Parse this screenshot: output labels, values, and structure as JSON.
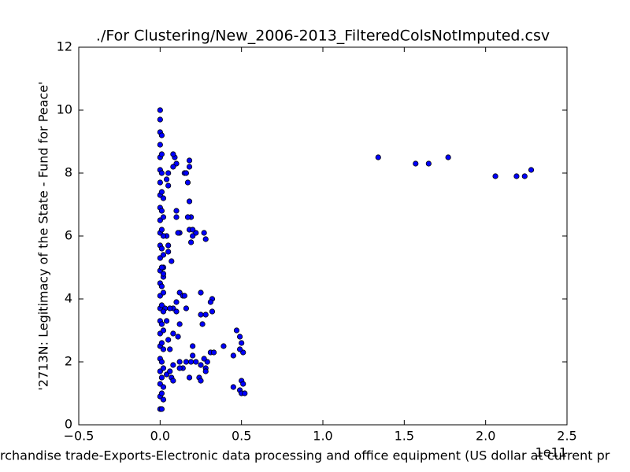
{
  "chart_data": {
    "type": "scatter",
    "title": "./For Clustering/New_2006-2013_FilteredColsNotImputed.csv",
    "x_label": "rchandise trade-Exports-Electronic data processing and office equipment (US dollar at current pr",
    "y_label": "'2713N: Legitimacy of the State - Fund for Peace'",
    "x_offset_label": "1e11",
    "color": "#0000ff",
    "edge_color": "#000000",
    "xlim": [
      -0.5,
      2.5
    ],
    "xticks": [
      {
        "value": -0.5,
        "label": "−0.5"
      },
      {
        "value": 0,
        "label": "0.0"
      },
      0.5,
      {
        "value": 1,
        "label": "1.0"
      },
      1.5,
      {
        "value": 2,
        "label": "2.0"
      },
      2.5
    ],
    "ylim": [
      0,
      12
    ],
    "yticks": [
      0,
      2,
      4,
      6,
      8,
      10,
      12
    ],
    "x": [
      1.34,
      1.57,
      1.65,
      1.77,
      2.06,
      2.19,
      2.24,
      2.28,
      0.47,
      0.49,
      0.5,
      0.51,
      0.49,
      0.45,
      0.45,
      0.49,
      0.5,
      0.52,
      0.5,
      0.51,
      0.39,
      0.31,
      0.33,
      0.29,
      0.27,
      0.28,
      0.28,
      0.25,
      0.24,
      0.25,
      0.32,
      0.31,
      0.25,
      0.32,
      0.25,
      0.28,
      0.26,
      0.28,
      0.27,
      0.22,
      0.19,
      0.2,
      0.18,
      0.2,
      0.19,
      0.17,
      0.18,
      0.17,
      0.18,
      0.18,
      0.15,
      0.16,
      0.1,
      0.09,
      0.08,
      0.08,
      0.1,
      0.1,
      0.12,
      0.11,
      0.12,
      0.14,
      0.15,
      0.16,
      0.1,
      0.12,
      0.08,
      0.1,
      0.11,
      0.08,
      0.12,
      0.14,
      0.12,
      0.16,
      0.18,
      0.19,
      0.2,
      0.2,
      0.22,
      0.04,
      0.05,
      0.06,
      0.04,
      0.06,
      0.07,
      0.08,
      0.08,
      0.05,
      0.04,
      0.05,
      0.05,
      0.04,
      0.05,
      0.07,
      0.02,
      0.02,
      0.03,
      0.06,
      0,
      0,
      0,
      0,
      0,
      0,
      0,
      0,
      0,
      0,
      0,
      0,
      0,
      0,
      0,
      0,
      0,
      0,
      0,
      0,
      0,
      0,
      0,
      0,
      0,
      0.01,
      0.01,
      0.01,
      0.01,
      0.01,
      0.01,
      0.01,
      0.01,
      0.01,
      0.01,
      0.01,
      0.01,
      0.01,
      0.01,
      0.01,
      0.01,
      0.02,
      0.02,
      0.02,
      0.02,
      0.02,
      0.02,
      0.02,
      0.02,
      0.02,
      0.02,
      0.02,
      0.02
    ],
    "values": [
      8.5,
      8.3,
      8.3,
      8.5,
      7.9,
      7.9,
      7.9,
      8.1,
      3.0,
      2.8,
      2.6,
      2.3,
      2.4,
      2.2,
      1.2,
      1.1,
      1.0,
      1.0,
      1.4,
      1.3,
      2.5,
      2.3,
      2.3,
      2.0,
      2.1,
      1.8,
      1.7,
      1.9,
      1.5,
      1.4,
      4.0,
      3.9,
      4.2,
      3.6,
      3.5,
      3.5,
      3.2,
      5.9,
      6.1,
      6.1,
      5.8,
      6.0,
      6.2,
      6.2,
      6.6,
      6.6,
      7.1,
      7.7,
      8.2,
      8.4,
      8.0,
      8.0,
      8.3,
      8.5,
      8.6,
      8.2,
      6.8,
      6.6,
      6.1,
      6.1,
      4.2,
      4.1,
      4.1,
      3.7,
      3.9,
      3.2,
      3.7,
      3.6,
      2.8,
      2.9,
      2.0,
      1.8,
      1.8,
      2.0,
      1.5,
      2.0,
      2.5,
      2.2,
      2.0,
      3.3,
      2.7,
      2.4,
      1.6,
      1.7,
      1.5,
      1.4,
      1.9,
      5.7,
      6.0,
      5.5,
      7.6,
      7.8,
      8.0,
      5.2,
      5.0,
      4.7,
      3.7,
      3.7,
      0.5,
      0.9,
      1.3,
      1.7,
      2.1,
      2.5,
      2.9,
      3.3,
      3.7,
      4.1,
      4.5,
      4.9,
      5.3,
      5.7,
      6.1,
      6.5,
      6.9,
      7.3,
      7.7,
      8.1,
      8.5,
      8.9,
      9.3,
      9.7,
      10.0,
      0.5,
      1.0,
      1.5,
      2.0,
      2.6,
      3.2,
      3.8,
      4.4,
      5.0,
      5.6,
      6.2,
      6.8,
      7.4,
      8.0,
      8.6,
      9.2,
      0.8,
      1.2,
      1.8,
      2.4,
      3.0,
      3.6,
      4.2,
      4.8,
      5.4,
      6.0,
      6.6,
      7.2
    ]
  }
}
